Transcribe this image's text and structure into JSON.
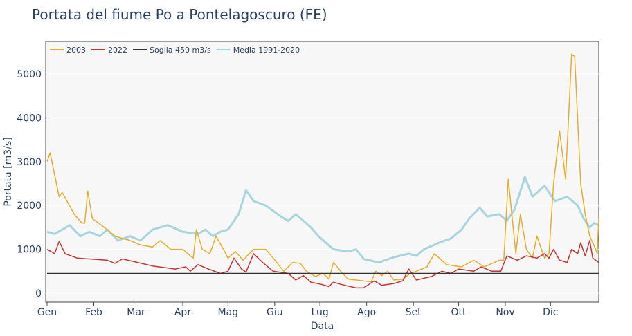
{
  "chart_data": {
    "type": "line",
    "title": "Portata del fiume Po a Pontelagoscuro (FE)",
    "xlabel": "Data",
    "ylabel": "Portata [m3/s]",
    "xlim_days": [
      0,
      366
    ],
    "ylim": [
      -200,
      5750
    ],
    "yticks": [
      0,
      1000,
      2000,
      3000,
      4000,
      5000
    ],
    "xticks": [
      {
        "label": "Gen",
        "day": 0
      },
      {
        "label": "Feb",
        "day": 31
      },
      {
        "label": "Mar",
        "day": 59
      },
      {
        "label": "Apr",
        "day": 90
      },
      {
        "label": "Mag",
        "day": 120
      },
      {
        "label": "Giu",
        "day": 151
      },
      {
        "label": "Lug",
        "day": 181
      },
      {
        "label": "Ago",
        "day": 212
      },
      {
        "label": "Set",
        "day": 243
      },
      {
        "label": "Ott",
        "day": 273
      },
      {
        "label": "Nov",
        "day": 304
      },
      {
        "label": "Dic",
        "day": 334
      }
    ],
    "legend_position": "top-left",
    "series": [
      {
        "name": "Media 1991-2020",
        "color": "#a6d5e0",
        "width": 3,
        "points": [
          [
            0,
            1400
          ],
          [
            5,
            1350
          ],
          [
            15,
            1550
          ],
          [
            22,
            1300
          ],
          [
            28,
            1400
          ],
          [
            35,
            1300
          ],
          [
            40,
            1450
          ],
          [
            47,
            1200
          ],
          [
            55,
            1300
          ],
          [
            62,
            1200
          ],
          [
            70,
            1450
          ],
          [
            80,
            1550
          ],
          [
            90,
            1400
          ],
          [
            100,
            1350
          ],
          [
            105,
            1450
          ],
          [
            110,
            1300
          ],
          [
            115,
            1400
          ],
          [
            120,
            1450
          ],
          [
            127,
            1800
          ],
          [
            132,
            2350
          ],
          [
            137,
            2100
          ],
          [
            145,
            2000
          ],
          [
            155,
            1750
          ],
          [
            160,
            1650
          ],
          [
            165,
            1800
          ],
          [
            175,
            1500
          ],
          [
            180,
            1300
          ],
          [
            190,
            1000
          ],
          [
            200,
            950
          ],
          [
            205,
            1000
          ],
          [
            210,
            780
          ],
          [
            220,
            700
          ],
          [
            230,
            820
          ],
          [
            240,
            900
          ],
          [
            245,
            850
          ],
          [
            250,
            1000
          ],
          [
            260,
            1150
          ],
          [
            268,
            1250
          ],
          [
            275,
            1450
          ],
          [
            280,
            1700
          ],
          [
            287,
            1950
          ],
          [
            292,
            1750
          ],
          [
            300,
            1800
          ],
          [
            305,
            1650
          ],
          [
            310,
            1900
          ],
          [
            317,
            2650
          ],
          [
            322,
            2200
          ],
          [
            330,
            2450
          ],
          [
            337,
            2100
          ],
          [
            345,
            2200
          ],
          [
            352,
            2000
          ],
          [
            356,
            1700
          ],
          [
            360,
            1500
          ],
          [
            363,
            1600
          ],
          [
            366,
            1550
          ]
        ]
      },
      {
        "name": "2003",
        "color": "#e6ad2c",
        "width": 1.5,
        "points": [
          [
            0,
            3000
          ],
          [
            2,
            3200
          ],
          [
            8,
            2200
          ],
          [
            10,
            2300
          ],
          [
            18,
            1800
          ],
          [
            23,
            1600
          ],
          [
            25,
            1600
          ],
          [
            27,
            2330
          ],
          [
            30,
            1700
          ],
          [
            38,
            1500
          ],
          [
            45,
            1300
          ],
          [
            55,
            1200
          ],
          [
            62,
            1100
          ],
          [
            70,
            1050
          ],
          [
            75,
            1200
          ],
          [
            82,
            1000
          ],
          [
            90,
            1000
          ],
          [
            95,
            850
          ],
          [
            97,
            800
          ],
          [
            99,
            1450
          ],
          [
            103,
            1000
          ],
          [
            108,
            900
          ],
          [
            112,
            1300
          ],
          [
            117,
            1000
          ],
          [
            120,
            800
          ],
          [
            125,
            950
          ],
          [
            130,
            750
          ],
          [
            137,
            1000
          ],
          [
            145,
            1000
          ],
          [
            150,
            800
          ],
          [
            157,
            500
          ],
          [
            163,
            700
          ],
          [
            168,
            680
          ],
          [
            172,
            500
          ],
          [
            178,
            380
          ],
          [
            183,
            450
          ],
          [
            187,
            320
          ],
          [
            190,
            700
          ],
          [
            196,
            450
          ],
          [
            200,
            320
          ],
          [
            210,
            280
          ],
          [
            215,
            260
          ],
          [
            218,
            500
          ],
          [
            222,
            400
          ],
          [
            226,
            500
          ],
          [
            230,
            300
          ],
          [
            236,
            320
          ],
          [
            241,
            450
          ],
          [
            245,
            500
          ],
          [
            252,
            600
          ],
          [
            257,
            900
          ],
          [
            265,
            650
          ],
          [
            275,
            600
          ],
          [
            283,
            750
          ],
          [
            290,
            600
          ],
          [
            300,
            750
          ],
          [
            303,
            750
          ],
          [
            306,
            2600
          ],
          [
            311,
            900
          ],
          [
            314,
            1800
          ],
          [
            318,
            1000
          ],
          [
            322,
            800
          ],
          [
            325,
            1300
          ],
          [
            330,
            800
          ],
          [
            333,
            900
          ],
          [
            336,
            2500
          ],
          [
            340,
            3700
          ],
          [
            344,
            2600
          ],
          [
            348,
            5450
          ],
          [
            350,
            5400
          ],
          [
            354,
            2500
          ],
          [
            357,
            1800
          ],
          [
            360,
            1300
          ],
          [
            364,
            1000
          ],
          [
            365,
            900
          ],
          [
            366,
            1700
          ]
        ]
      },
      {
        "name": "2022",
        "color": "#c73232",
        "width": 1.5,
        "points": [
          [
            0,
            1000
          ],
          [
            5,
            900
          ],
          [
            8,
            1180
          ],
          [
            12,
            900
          ],
          [
            20,
            800
          ],
          [
            40,
            750
          ],
          [
            45,
            680
          ],
          [
            50,
            780
          ],
          [
            60,
            700
          ],
          [
            70,
            620
          ],
          [
            85,
            550
          ],
          [
            92,
            600
          ],
          [
            95,
            500
          ],
          [
            100,
            650
          ],
          [
            107,
            550
          ],
          [
            115,
            450
          ],
          [
            120,
            500
          ],
          [
            124,
            800
          ],
          [
            129,
            550
          ],
          [
            132,
            480
          ],
          [
            137,
            900
          ],
          [
            143,
            700
          ],
          [
            150,
            500
          ],
          [
            160,
            450
          ],
          [
            165,
            300
          ],
          [
            170,
            400
          ],
          [
            175,
            250
          ],
          [
            182,
            200
          ],
          [
            187,
            150
          ],
          [
            190,
            250
          ],
          [
            195,
            200
          ],
          [
            205,
            120
          ],
          [
            210,
            120
          ],
          [
            217,
            280
          ],
          [
            222,
            180
          ],
          [
            230,
            220
          ],
          [
            236,
            280
          ],
          [
            240,
            550
          ],
          [
            245,
            300
          ],
          [
            255,
            380
          ],
          [
            262,
            500
          ],
          [
            268,
            450
          ],
          [
            273,
            550
          ],
          [
            283,
            500
          ],
          [
            288,
            600
          ],
          [
            295,
            500
          ],
          [
            301,
            500
          ],
          [
            305,
            850
          ],
          [
            312,
            750
          ],
          [
            318,
            850
          ],
          [
            325,
            800
          ],
          [
            330,
            900
          ],
          [
            333,
            800
          ],
          [
            336,
            1000
          ],
          [
            340,
            750
          ],
          [
            345,
            700
          ],
          [
            348,
            1000
          ],
          [
            352,
            900
          ],
          [
            354,
            1150
          ],
          [
            357,
            850
          ],
          [
            360,
            1200
          ],
          [
            362,
            800
          ],
          [
            366,
            700
          ]
        ]
      },
      {
        "name": "Soglia 450 m3/s",
        "color": "#333333",
        "width": 1.5,
        "points": [
          [
            0,
            450
          ],
          [
            366,
            450
          ]
        ]
      }
    ],
    "legend_order": [
      "2003",
      "2022",
      "Soglia 450 m3/s",
      "Media 1991-2020"
    ]
  }
}
